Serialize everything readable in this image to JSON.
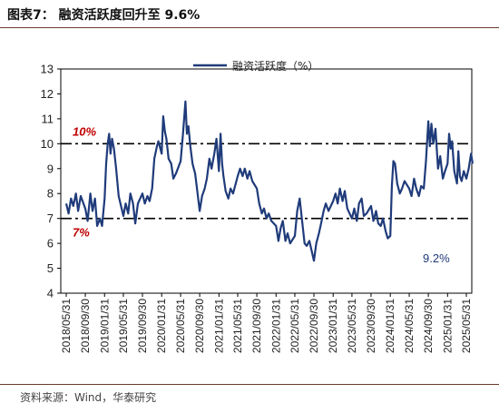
{
  "figure": {
    "title": "图表7：  融资活跃度回升至 9.6%",
    "source": "资料来源：Wind，华泰研究"
  },
  "chart_data": {
    "type": "line",
    "ylim": [
      4,
      13
    ],
    "yticks": [
      4,
      5,
      6,
      7,
      8,
      9,
      10,
      11,
      12,
      13
    ],
    "xticks": [
      "2018/05/31",
      "2018/09/30",
      "2019/01/31",
      "2019/05/31",
      "2019/09/30",
      "2020/01/31",
      "2020/05/31",
      "2020/09/30",
      "2021/01/31",
      "2021/05/31",
      "2021/09/30",
      "2022/01/31",
      "2022/05/31",
      "2022/09/30",
      "2023/01/31",
      "2023/05/31",
      "2023/09/30",
      "2024/01/31",
      "2024/05/31",
      "2024/09/30",
      "2025/01/31",
      "2025/05/31"
    ],
    "series": [
      {
        "name": "融资活跃度（%）",
        "color": "#1f3b7a",
        "points": [
          [
            "2018/05/31",
            7.6
          ],
          [
            "2018/06/15",
            7.2
          ],
          [
            "2018/07/01",
            7.8
          ],
          [
            "2018/07/15",
            7.5
          ],
          [
            "2018/08/01",
            8.0
          ],
          [
            "2018/08/15",
            7.3
          ],
          [
            "2018/09/01",
            7.9
          ],
          [
            "2018/09/30",
            7.4
          ],
          [
            "2018/10/15",
            6.9
          ],
          [
            "2018/11/01",
            8.0
          ],
          [
            "2018/11/15",
            7.3
          ],
          [
            "2018/12/01",
            7.8
          ],
          [
            "2018/12/15",
            6.7
          ],
          [
            "2019/01/01",
            7.0
          ],
          [
            "2019/01/15",
            6.7
          ],
          [
            "2019/01/31",
            7.8
          ],
          [
            "2019/02/10",
            9.2
          ],
          [
            "2019/02/20",
            10.0
          ],
          [
            "2019/03/01",
            10.4
          ],
          [
            "2019/03/10",
            9.6
          ],
          [
            "2019/03/20",
            10.2
          ],
          [
            "2019/04/01",
            9.8
          ],
          [
            "2019/04/15",
            9.0
          ],
          [
            "2019/05/01",
            7.9
          ],
          [
            "2019/05/31",
            7.1
          ],
          [
            "2019/06/15",
            7.6
          ],
          [
            "2019/07/01",
            7.2
          ],
          [
            "2019/07/15",
            8.0
          ],
          [
            "2019/08/01",
            7.6
          ],
          [
            "2019/08/15",
            6.8
          ],
          [
            "2019/09/01",
            7.6
          ],
          [
            "2019/09/30",
            8.0
          ],
          [
            "2019/10/15",
            7.6
          ],
          [
            "2019/11/01",
            7.9
          ],
          [
            "2019/11/15",
            7.7
          ],
          [
            "2019/12/01",
            8.2
          ],
          [
            "2019/12/15",
            9.4
          ],
          [
            "2020/01/01",
            9.9
          ],
          [
            "2020/01/10",
            10.1
          ],
          [
            "2020/01/31",
            9.6
          ],
          [
            "2020/02/10",
            11.1
          ],
          [
            "2020/02/20",
            10.5
          ],
          [
            "2020/03/01",
            10.2
          ],
          [
            "2020/03/15",
            9.4
          ],
          [
            "2020/04/01",
            9.2
          ],
          [
            "2020/04/15",
            8.6
          ],
          [
            "2020/05/01",
            8.8
          ],
          [
            "2020/05/31",
            9.3
          ],
          [
            "2020/06/15",
            10.4
          ],
          [
            "2020/07/01",
            11.7
          ],
          [
            "2020/07/10",
            10.4
          ],
          [
            "2020/07/20",
            10.7
          ],
          [
            "2020/08/01",
            9.9
          ],
          [
            "2020/08/15",
            9.2
          ],
          [
            "2020/09/01",
            8.8
          ],
          [
            "2020/09/30",
            7.3
          ],
          [
            "2020/10/15",
            7.9
          ],
          [
            "2020/11/01",
            8.2
          ],
          [
            "2020/11/15",
            8.6
          ],
          [
            "2020/12/01",
            9.4
          ],
          [
            "2020/12/15",
            9.0
          ],
          [
            "2021/01/01",
            9.6
          ],
          [
            "2021/01/15",
            10.2
          ],
          [
            "2021/01/31",
            8.9
          ],
          [
            "2021/02/10",
            10.4
          ],
          [
            "2021/02/20",
            9.2
          ],
          [
            "2021/03/01",
            8.7
          ],
          [
            "2021/03/15",
            8.1
          ],
          [
            "2021/04/01",
            7.8
          ],
          [
            "2021/04/15",
            8.2
          ],
          [
            "2021/05/01",
            8.0
          ],
          [
            "2021/05/31",
            8.7
          ],
          [
            "2021/06/15",
            9.0
          ],
          [
            "2021/07/01",
            8.7
          ],
          [
            "2021/07/15",
            9.0
          ],
          [
            "2021/08/01",
            8.6
          ],
          [
            "2021/08/15",
            8.9
          ],
          [
            "2021/09/01",
            8.5
          ],
          [
            "2021/09/30",
            8.2
          ],
          [
            "2021/10/15",
            7.6
          ],
          [
            "2021/11/01",
            7.2
          ],
          [
            "2021/11/15",
            7.4
          ],
          [
            "2021/12/01",
            7.0
          ],
          [
            "2021/12/15",
            7.2
          ],
          [
            "2022/01/01",
            6.9
          ],
          [
            "2022/01/31",
            6.7
          ],
          [
            "2022/02/15",
            6.1
          ],
          [
            "2022/03/01",
            6.6
          ],
          [
            "2022/03/15",
            6.9
          ],
          [
            "2022/04/01",
            6.1
          ],
          [
            "2022/04/15",
            6.4
          ],
          [
            "2022/05/01",
            6.0
          ],
          [
            "2022/05/31",
            6.3
          ],
          [
            "2022/06/15",
            7.3
          ],
          [
            "2022/07/01",
            7.8
          ],
          [
            "2022/07/15",
            7.0
          ],
          [
            "2022/08/01",
            6.0
          ],
          [
            "2022/08/15",
            5.9
          ],
          [
            "2022/09/01",
            6.1
          ],
          [
            "2022/09/30",
            5.3
          ],
          [
            "2022/10/15",
            6.0
          ],
          [
            "2022/11/01",
            6.4
          ],
          [
            "2022/11/15",
            6.8
          ],
          [
            "2022/12/01",
            7.3
          ],
          [
            "2022/12/15",
            7.6
          ],
          [
            "2023/01/01",
            7.3
          ],
          [
            "2023/01/31",
            7.7
          ],
          [
            "2023/02/15",
            8.0
          ],
          [
            "2023/03/01",
            7.6
          ],
          [
            "2023/03/15",
            8.2
          ],
          [
            "2023/04/01",
            7.7
          ],
          [
            "2023/04/15",
            8.1
          ],
          [
            "2023/05/01",
            7.4
          ],
          [
            "2023/05/31",
            7.0
          ],
          [
            "2023/06/15",
            7.4
          ],
          [
            "2023/07/01",
            6.9
          ],
          [
            "2023/07/15",
            7.6
          ],
          [
            "2023/08/01",
            7.8
          ],
          [
            "2023/08/15",
            7.1
          ],
          [
            "2023/09/01",
            7.2
          ],
          [
            "2023/09/30",
            7.5
          ],
          [
            "2023/10/15",
            6.9
          ],
          [
            "2023/11/01",
            7.3
          ],
          [
            "2023/11/15",
            6.8
          ],
          [
            "2023/12/01",
            6.7
          ],
          [
            "2023/12/15",
            7.0
          ],
          [
            "2024/01/01",
            6.5
          ],
          [
            "2024/01/15",
            6.2
          ],
          [
            "2024/01/31",
            6.3
          ],
          [
            "2024/02/10",
            8.3
          ],
          [
            "2024/02/20",
            9.3
          ],
          [
            "2024/03/01",
            9.2
          ],
          [
            "2024/03/15",
            8.4
          ],
          [
            "2024/04/01",
            8.0
          ],
          [
            "2024/04/15",
            8.2
          ],
          [
            "2024/05/01",
            8.5
          ],
          [
            "2024/05/31",
            8.2
          ],
          [
            "2024/06/15",
            7.9
          ],
          [
            "2024/07/01",
            8.6
          ],
          [
            "2024/07/15",
            8.2
          ],
          [
            "2024/08/01",
            7.9
          ],
          [
            "2024/08/15",
            8.3
          ],
          [
            "2024/09/01",
            8.2
          ],
          [
            "2024/09/15",
            9.3
          ],
          [
            "2024/09/30",
            10.9
          ],
          [
            "2024/10/10",
            9.9
          ],
          [
            "2024/10/20",
            10.8
          ],
          [
            "2024/11/01",
            10.0
          ],
          [
            "2024/11/15",
            10.6
          ],
          [
            "2024/12/01",
            9.0
          ],
          [
            "2024/12/15",
            9.5
          ],
          [
            "2025/01/01",
            8.6
          ],
          [
            "2025/01/15",
            8.9
          ],
          [
            "2025/01/31",
            9.2
          ],
          [
            "2025/02/10",
            10.4
          ],
          [
            "2025/02/20",
            9.8
          ],
          [
            "2025/03/01",
            10.1
          ],
          [
            "2025/03/15",
            8.9
          ],
          [
            "2025/04/01",
            8.4
          ],
          [
            "2025/04/10",
            9.7
          ],
          [
            "2025/04/20",
            8.7
          ],
          [
            "2025/05/01",
            8.5
          ],
          [
            "2025/05/15",
            8.9
          ],
          [
            "2025/05/31",
            8.6
          ],
          [
            "2025/06/15",
            9.0
          ],
          [
            "2025/06/30",
            9.6
          ],
          [
            "2025/07/10",
            9.2
          ]
        ]
      }
    ],
    "reference_lines": [
      {
        "value": 10,
        "label": "10%",
        "style": "dash-dot",
        "color": "#000000"
      },
      {
        "value": 7,
        "label": "7%",
        "style": "dash-dot",
        "color": "#000000"
      }
    ],
    "annotations": [
      {
        "text": "9.2%",
        "color": "#1f3b7a"
      }
    ],
    "legend": "top-center",
    "grid": false
  }
}
